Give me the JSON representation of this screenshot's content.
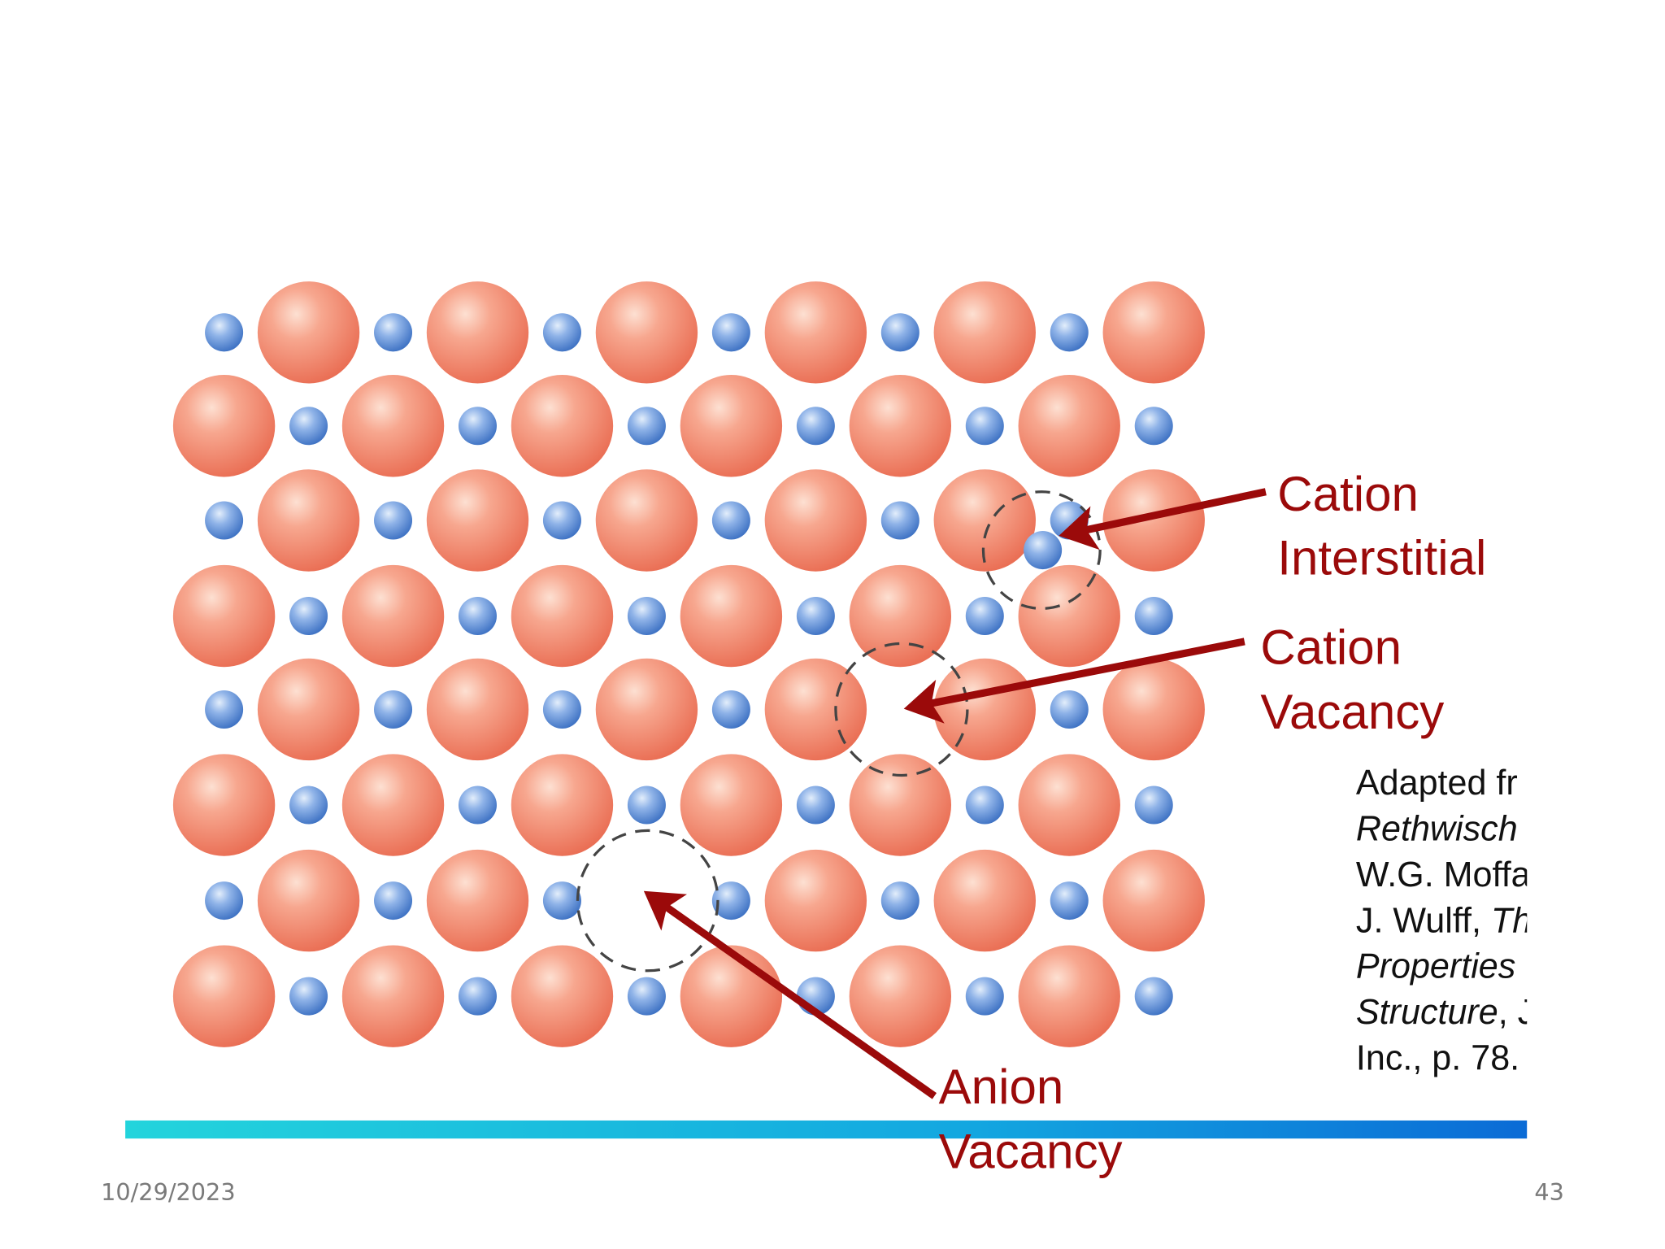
{
  "labels": {
    "cation_interstitial": [
      "Cation",
      "Interstitial"
    ],
    "cation_vacancy": [
      "Cation",
      "Vacancy"
    ],
    "anion_vacancy": [
      "Anion",
      "Vacancy"
    ]
  },
  "citation": [
    [
      {
        "text": "Adapted fr",
        "italic": false
      }
    ],
    [
      {
        "text": "Rethwisch",
        "italic": true
      }
    ],
    [
      {
        "text": "W.G. Moffa",
        "italic": false
      }
    ],
    [
      {
        "text": "J. Wulff, ",
        "italic": false
      },
      {
        "text": "Th",
        "italic": true
      }
    ],
    [
      {
        "text": "Properties",
        "italic": true
      }
    ],
    [
      {
        "text": "Structure",
        "italic": true
      },
      {
        "text": ", J",
        "italic": false
      }
    ],
    [
      {
        "text": "Inc., p. 78.",
        "italic": false
      }
    ]
  ],
  "footer": {
    "date": "10/29/2023",
    "page": "43"
  }
}
